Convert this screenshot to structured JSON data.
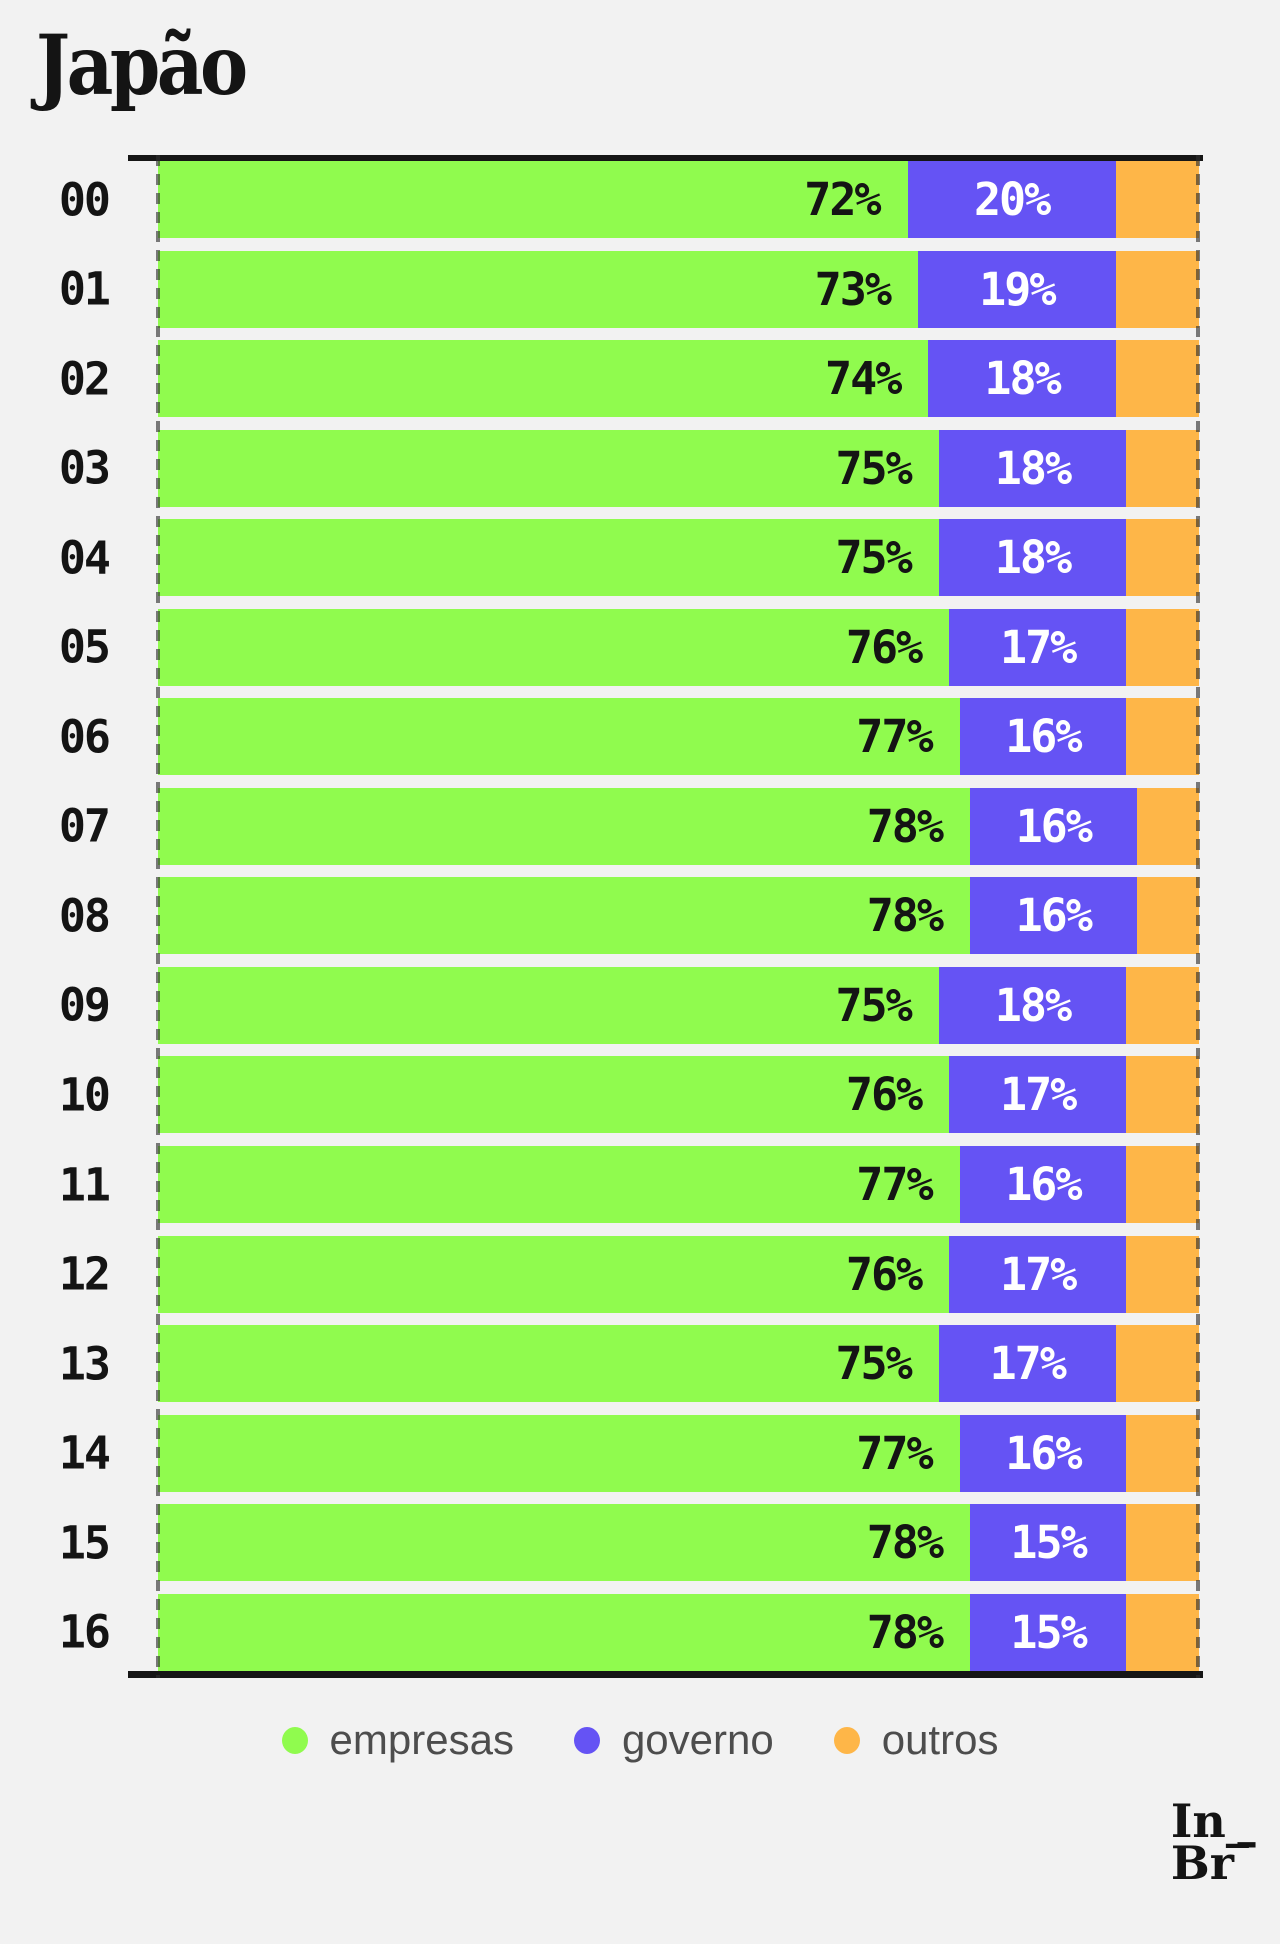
{
  "title": "Japão",
  "colors": {
    "background": "#f2f2f2",
    "axis": "#161616",
    "label_dark": "#141414",
    "label_light": "#ffffff",
    "legend_text": "#4d4d4d",
    "dashed_gridline": "#6b6b6b"
  },
  "logo": {
    "line1": "In_",
    "line2": "Br",
    "line2_mark": "–"
  },
  "chart_data": {
    "type": "bar",
    "orientation": "horizontal",
    "stacked": true,
    "title": "Japão",
    "categories": [
      "00",
      "01",
      "02",
      "03",
      "04",
      "05",
      "06",
      "07",
      "08",
      "09",
      "10",
      "11",
      "12",
      "13",
      "14",
      "15",
      "16"
    ],
    "series": [
      {
        "name": "empresas",
        "color": "#90fb4e",
        "label_color": "#141414",
        "show_labels": true,
        "values": [
          72,
          73,
          74,
          75,
          75,
          76,
          77,
          78,
          78,
          75,
          76,
          77,
          76,
          75,
          77,
          78,
          78
        ]
      },
      {
        "name": "governo",
        "color": "#6553f4",
        "label_color": "#ffffff",
        "show_labels": true,
        "values": [
          20,
          19,
          18,
          18,
          18,
          17,
          16,
          16,
          16,
          18,
          17,
          16,
          17,
          17,
          16,
          15,
          15
        ]
      },
      {
        "name": "outros",
        "color": "#feb648",
        "label_color": "#141414",
        "show_labels": false,
        "values": [
          8,
          8,
          8,
          7,
          7,
          7,
          7,
          6,
          6,
          7,
          7,
          7,
          7,
          8,
          7,
          7,
          7
        ]
      }
    ],
    "value_suffix": "%",
    "xlim": [
      0,
      100
    ],
    "x_axis_gridlines_pct": [
      0,
      100
    ],
    "legend_position": "bottom",
    "grid": false
  }
}
